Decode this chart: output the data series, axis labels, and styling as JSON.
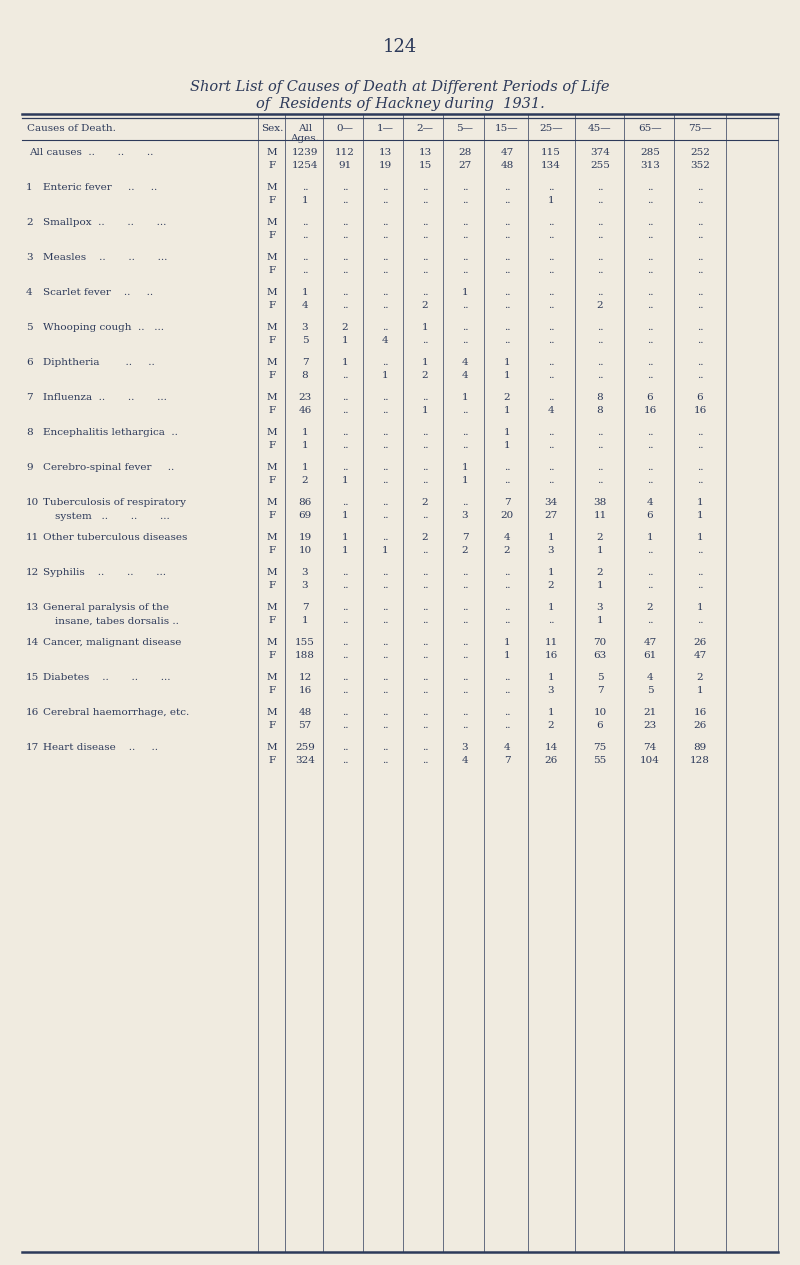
{
  "page_number": "124",
  "title_line1": "Short List of Causes of Death at Different Periods of Life",
  "title_line2": "of  Residents of Hackney during  1931.",
  "bg_color": "#f0ebe0",
  "text_color": "#2d3a5a",
  "rows": [
    {
      "label": "All causes  ..       ..       ..",
      "num": "",
      "wrap2": "",
      "data": [
        [
          "M",
          "1239",
          "112",
          "13",
          "13",
          "28",
          "47",
          "115",
          "374",
          "285",
          "252"
        ],
        [
          "F",
          "1254",
          "91",
          "19",
          "15",
          "27",
          "48",
          "134",
          "255",
          "313",
          "352"
        ]
      ]
    },
    {
      "label": "Enteric fever     ..     ..",
      "num": "1",
      "wrap2": "",
      "data": [
        [
          "M",
          "..",
          "..",
          "..",
          "..",
          "..",
          "..",
          "..",
          "..",
          "..",
          ".."
        ],
        [
          "F",
          "1",
          "..",
          "..",
          "..",
          "..",
          "..",
          "1",
          "..",
          "..",
          ".."
        ]
      ]
    },
    {
      "label": "Smallpox  ..       ..       ...",
      "num": "2",
      "wrap2": "",
      "data": [
        [
          "M",
          "..",
          "..",
          "..",
          "..",
          "..",
          "..",
          "..",
          "..",
          "..",
          ".."
        ],
        [
          "F",
          "..",
          "..",
          "..",
          "..",
          "..",
          "..",
          "..",
          "..",
          "..",
          ".."
        ]
      ]
    },
    {
      "label": "Measles    ..       ..       ...",
      "num": "3",
      "wrap2": "",
      "data": [
        [
          "M",
          "..",
          "..",
          "..",
          "..",
          "..",
          "..",
          "..",
          "..",
          "..",
          ".."
        ],
        [
          "F",
          "..",
          "..",
          "..",
          "..",
          "..",
          "..",
          "..",
          "..",
          "..",
          ".."
        ]
      ]
    },
    {
      "label": "Scarlet fever    ..     ..",
      "num": "4",
      "wrap2": "",
      "data": [
        [
          "M",
          "1",
          "..",
          "..",
          "..",
          "1",
          "..",
          "..",
          "..",
          "..",
          ".."
        ],
        [
          "F",
          "4",
          "..",
          "..",
          "2",
          "..",
          "..",
          "..",
          "2",
          "..",
          ".."
        ]
      ]
    },
    {
      "label": "Whooping cough  ..   ...",
      "num": "5",
      "wrap2": "",
      "data": [
        [
          "M",
          "3",
          "2",
          "..",
          "1",
          "..",
          "..",
          "..",
          "..",
          "..",
          ".."
        ],
        [
          "F",
          "5",
          "1",
          "4",
          "..",
          "..",
          "..",
          "..",
          "..",
          "..",
          ".."
        ]
      ]
    },
    {
      "label": "Diphtheria        ..     ..",
      "num": "6",
      "wrap2": "",
      "data": [
        [
          "M",
          "7",
          "1",
          "..",
          "1",
          "4",
          "1",
          "..",
          "..",
          "..",
          ".."
        ],
        [
          "F",
          "8",
          "..",
          "1",
          "2",
          "4",
          "1",
          "..",
          "..",
          "..",
          ".."
        ]
      ]
    },
    {
      "label": "Influenza  ..       ..       ...",
      "num": "7",
      "wrap2": "",
      "data": [
        [
          "M",
          "23",
          "..",
          "..",
          "..",
          "1",
          "2",
          "..",
          "8",
          "6",
          "6"
        ],
        [
          "F",
          "46",
          "..",
          "..",
          "1",
          "..",
          "1",
          "4",
          "8",
          "16",
          "16"
        ]
      ]
    },
    {
      "label": "Encephalitis lethargica  ..",
      "num": "8",
      "wrap2": "",
      "data": [
        [
          "M",
          "1",
          "..",
          "..",
          "..",
          "..",
          "1",
          "..",
          "..",
          "..",
          ".."
        ],
        [
          "F",
          "1",
          "..",
          "..",
          "..",
          "..",
          "1",
          "..",
          "..",
          "..",
          ".."
        ]
      ]
    },
    {
      "label": "Cerebro-spinal fever     ..",
      "num": "9",
      "wrap2": "",
      "data": [
        [
          "M",
          "1",
          "..",
          "..",
          "..",
          "1",
          "..",
          "..",
          "..",
          "..",
          ".."
        ],
        [
          "F",
          "2",
          "1",
          "..",
          "..",
          "1",
          "..",
          "..",
          "..",
          "..",
          ".."
        ]
      ]
    },
    {
      "label": "Tuberculosis of respiratory",
      "num": "10",
      "wrap2": "system   ..       ..       ...",
      "data": [
        [
          "M",
          "86",
          "..",
          "..",
          "2",
          "..",
          "7",
          "34",
          "38",
          "4",
          "1"
        ],
        [
          "F",
          "69",
          "1",
          "..",
          "..",
          "3",
          "20",
          "27",
          "11",
          "6",
          "1"
        ]
      ]
    },
    {
      "label": "Other tuberculous diseases",
      "num": "11",
      "wrap2": "",
      "data": [
        [
          "M",
          "19",
          "1",
          "..",
          "2",
          "7",
          "4",
          "1",
          "2",
          "1",
          "1"
        ],
        [
          "F",
          "10",
          "1",
          "1",
          "..",
          "2",
          "2",
          "3",
          "1",
          "..",
          ".."
        ]
      ]
    },
    {
      "label": "Syphilis    ..       ..       ...",
      "num": "12",
      "wrap2": "",
      "data": [
        [
          "M",
          "3",
          "..",
          "..",
          "..",
          "..",
          "..",
          "1",
          "2",
          "..",
          ".."
        ],
        [
          "F",
          "3",
          "..",
          "..",
          "..",
          "..",
          "..",
          "2",
          "1",
          "..",
          ".."
        ]
      ]
    },
    {
      "label": "General paralysis of the",
      "num": "13",
      "wrap2": "insane, tabes dorsalis ..",
      "data": [
        [
          "M",
          "7",
          "..",
          "..",
          "..",
          "..",
          "..",
          "1",
          "3",
          "2",
          "1"
        ],
        [
          "F",
          "1",
          "..",
          "..",
          "..",
          "..",
          "..",
          "..",
          "1",
          "..",
          ".."
        ]
      ]
    },
    {
      "label": "Cancer, malignant disease",
      "num": "14",
      "wrap2": "",
      "data": [
        [
          "M",
          "155",
          "..",
          "..",
          "..",
          "..",
          "1",
          "11",
          "70",
          "47",
          "26"
        ],
        [
          "F",
          "188",
          "..",
          "..",
          "..",
          "..",
          "1",
          "16",
          "63",
          "61",
          "47"
        ]
      ]
    },
    {
      "label": "Diabetes    ..       ..       ...",
      "num": "15",
      "wrap2": "",
      "data": [
        [
          "M",
          "12",
          "..",
          "..",
          "..",
          "..",
          "..",
          "1",
          "5",
          "4",
          "2"
        ],
        [
          "F",
          "16",
          "..",
          "..",
          "..",
          "..",
          "..",
          "3",
          "7",
          "5",
          "1"
        ]
      ]
    },
    {
      "label": "Cerebral haemorrhage, etc.",
      "num": "16",
      "wrap2": "",
      "data": [
        [
          "M",
          "48",
          "..",
          "..",
          "..",
          "..",
          "..",
          "1",
          "10",
          "21",
          "16"
        ],
        [
          "F",
          "57",
          "..",
          "..",
          "..",
          "..",
          "..",
          "2",
          "6",
          "23",
          "26"
        ]
      ]
    },
    {
      "label": "Heart disease    ..     ..",
      "num": "17",
      "wrap2": "",
      "data": [
        [
          "M",
          "259",
          "..",
          "..",
          "..",
          "3",
          "4",
          "14",
          "75",
          "74",
          "89"
        ],
        [
          "F",
          "324",
          "..",
          "..",
          "..",
          "4",
          "7",
          "26",
          "55",
          "104",
          "128"
        ]
      ]
    }
  ]
}
